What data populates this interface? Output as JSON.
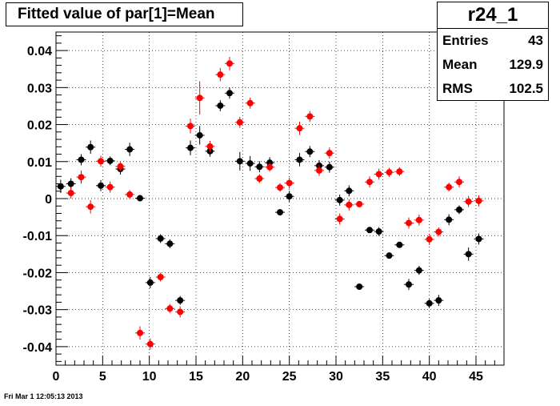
{
  "title": "Fitted value of par[1]=Mean",
  "stats": {
    "name": "r24_1",
    "rows": [
      {
        "key": "Entries",
        "value": "43"
      },
      {
        "key": "Mean",
        "value": "129.9"
      },
      {
        "key": "RMS",
        "value": "102.5"
      }
    ]
  },
  "footer": "Fri Mar  1 12:05:13 2013",
  "colors": {
    "series_black": "#000000",
    "series_red": "#ff0000",
    "grid": "#000000"
  },
  "chart_data": {
    "type": "scatter",
    "xlim": [
      0,
      48
    ],
    "ylim": [
      -0.045,
      0.045
    ],
    "x_ticks": [
      0,
      5,
      10,
      15,
      20,
      25,
      30,
      35,
      40,
      45
    ],
    "x_tick_labels": [
      "0",
      "5",
      "10",
      "15",
      "20",
      "25",
      "30",
      "35",
      "40",
      "45"
    ],
    "y_ticks": [
      -0.04,
      -0.03,
      -0.02,
      -0.01,
      0,
      0.01,
      0.02,
      0.03,
      0.04
    ],
    "y_tick_labels": [
      "-0.04",
      "-0.03",
      "-0.02",
      "-0.01",
      "0",
      "0.01",
      "0.02",
      "0.03",
      "0.04"
    ],
    "grid": true,
    "series": [
      {
        "color": "#000000",
        "points": [
          [
            0.5,
            0.0033,
            0.0018
          ],
          [
            1.6,
            0.004,
            0.0015
          ],
          [
            2.7,
            0.0105,
            0.0015
          ],
          [
            3.7,
            0.0139,
            0.0018
          ],
          [
            4.8,
            0.0035,
            0.0015
          ],
          [
            5.8,
            0.0102,
            0.0012
          ],
          [
            6.9,
            0.008,
            0.0015
          ],
          [
            7.9,
            0.0133,
            0.0018
          ],
          [
            9.0,
            0.0001,
            0.0008
          ],
          [
            10.1,
            -0.0227,
            0.0015
          ],
          [
            11.2,
            -0.0108,
            0.0012
          ],
          [
            12.2,
            -0.0122,
            0.0012
          ],
          [
            13.3,
            -0.0275,
            0.0012
          ],
          [
            14.4,
            0.0137,
            0.002
          ],
          [
            15.4,
            0.0171,
            0.0025
          ],
          [
            16.5,
            0.0128,
            0.0015
          ],
          [
            17.6,
            0.0251,
            0.0015
          ],
          [
            18.6,
            0.0285,
            0.0015
          ],
          [
            19.7,
            0.0101,
            0.0025
          ],
          [
            20.8,
            0.0095,
            0.002
          ],
          [
            21.8,
            0.0086,
            0.0015
          ],
          [
            22.9,
            0.0097,
            0.0015
          ],
          [
            24.0,
            -0.0037,
            0.0008
          ],
          [
            25.0,
            0.0006,
            0.0015
          ],
          [
            26.1,
            0.0105,
            0.0018
          ],
          [
            27.2,
            0.0127,
            0.0015
          ],
          [
            28.2,
            0.0089,
            0.0015
          ],
          [
            29.3,
            0.0085,
            0.0015
          ],
          [
            30.4,
            -0.0004,
            0.0015
          ],
          [
            31.4,
            0.0021,
            0.0015
          ],
          [
            32.5,
            -0.0238,
            0.0008
          ],
          [
            33.6,
            -0.0085,
            0.0008
          ],
          [
            34.6,
            -0.0089,
            0.0012
          ],
          [
            35.7,
            -0.0154,
            0.0008
          ],
          [
            36.8,
            -0.0125,
            0.0008
          ],
          [
            37.8,
            -0.0232,
            0.0015
          ],
          [
            38.9,
            -0.0194,
            0.0012
          ],
          [
            40.0,
            -0.0283,
            0.0012
          ],
          [
            41.0,
            -0.0275,
            0.0015
          ],
          [
            42.1,
            -0.0057,
            0.0015
          ],
          [
            43.2,
            -0.003,
            0.0012
          ],
          [
            44.2,
            -0.015,
            0.0018
          ],
          [
            45.3,
            -0.0109,
            0.0015
          ]
        ]
      },
      {
        "color": "#ff0000",
        "points": [
          [
            1.6,
            0.0015,
            0.0015
          ],
          [
            2.7,
            0.0058,
            0.0018
          ],
          [
            3.7,
            -0.0022,
            0.0018
          ],
          [
            4.8,
            0.0101,
            0.0015
          ],
          [
            5.8,
            0.0031,
            0.0015
          ],
          [
            6.9,
            0.0087,
            0.0012
          ],
          [
            7.9,
            0.0011,
            0.0012
          ],
          [
            9.0,
            -0.0363,
            0.0018
          ],
          [
            10.1,
            -0.0393,
            0.0015
          ],
          [
            11.2,
            -0.0212,
            0.0012
          ],
          [
            12.2,
            -0.0297,
            0.0012
          ],
          [
            13.3,
            -0.0306,
            0.0015
          ],
          [
            14.4,
            0.0196,
            0.002
          ],
          [
            15.4,
            0.0272,
            0.0045
          ],
          [
            16.5,
            0.0141,
            0.0015
          ],
          [
            17.6,
            0.0335,
            0.0018
          ],
          [
            18.6,
            0.0365,
            0.0018
          ],
          [
            19.7,
            0.0206,
            0.0015
          ],
          [
            20.8,
            0.0258,
            0.0015
          ],
          [
            21.8,
            0.0054,
            0.0012
          ],
          [
            22.9,
            0.0085,
            0.0012
          ],
          [
            24.0,
            0.003,
            0.0012
          ],
          [
            25.0,
            0.0042,
            0.0015
          ],
          [
            26.1,
            0.019,
            0.0018
          ],
          [
            27.2,
            0.0222,
            0.0015
          ],
          [
            28.2,
            0.0076,
            0.0015
          ],
          [
            29.3,
            0.0123,
            0.0015
          ],
          [
            30.4,
            -0.0055,
            0.0015
          ],
          [
            31.4,
            -0.0017,
            0.0015
          ],
          [
            32.5,
            -0.0015,
            0.0008
          ],
          [
            33.6,
            0.0045,
            0.0015
          ],
          [
            34.6,
            0.0066,
            0.0015
          ],
          [
            35.7,
            0.0071,
            0.0012
          ],
          [
            36.8,
            0.0073,
            0.0012
          ],
          [
            37.8,
            -0.0066,
            0.0015
          ],
          [
            38.9,
            -0.0058,
            0.0015
          ],
          [
            40.0,
            -0.011,
            0.0015
          ],
          [
            41.0,
            -0.009,
            0.0012
          ],
          [
            42.1,
            0.0031,
            0.0012
          ],
          [
            43.2,
            0.0045,
            0.0015
          ],
          [
            44.2,
            -0.0008,
            0.0015
          ],
          [
            45.3,
            -0.0006,
            0.0015
          ]
        ]
      }
    ]
  }
}
